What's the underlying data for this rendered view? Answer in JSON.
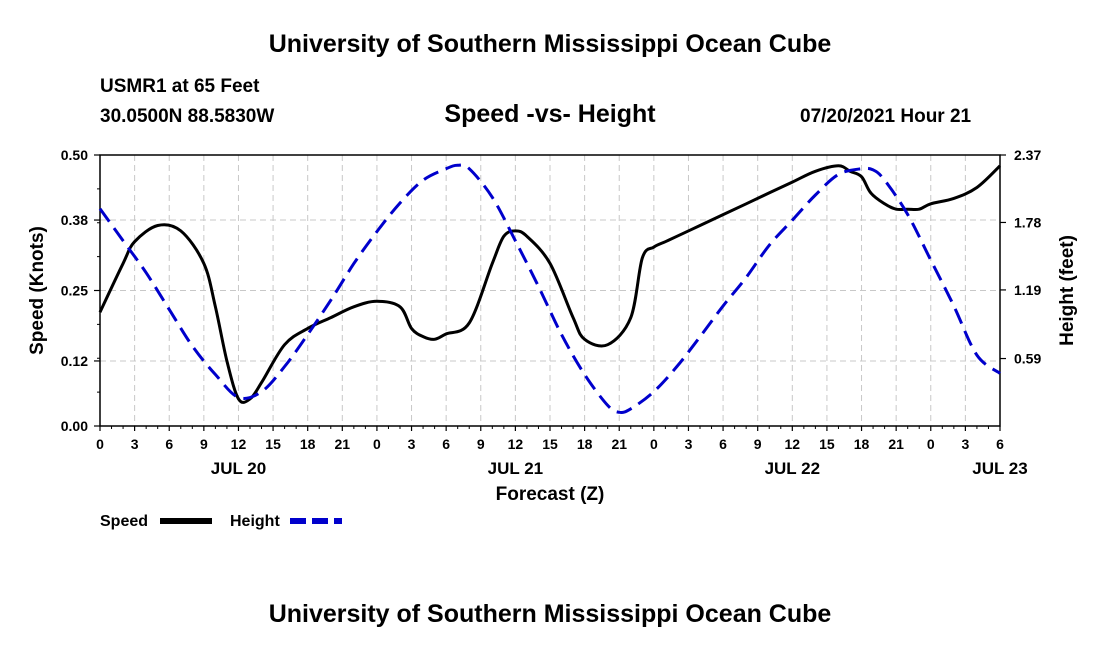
{
  "header": {
    "title": "University of Southern Mississippi Ocean Cube",
    "station": "USMR1 at 65 Feet",
    "coords": "30.0500N  88.5830W",
    "subtitle": "Speed -vs- Height",
    "datetime": "07/20/2021 Hour 21"
  },
  "footer": {
    "title": "University of Southern Mississippi Ocean Cube"
  },
  "chart_data": {
    "type": "line",
    "xlabel": "Forecast (Z)",
    "ylabel_left": "Speed (Knots)",
    "ylabel_right": "Height (feet)",
    "x_range_hours": [
      0,
      78
    ],
    "ylim_left": [
      0,
      0.5
    ],
    "ylim_right": [
      0,
      2.37
    ],
    "left_ticks": [
      "0.00",
      "0.12",
      "0.25",
      "0.38",
      "0.50"
    ],
    "right_ticks": [
      "0.59",
      "1.19",
      "1.78",
      "2.37"
    ],
    "right_tick_values": [
      0.59,
      1.19,
      1.78,
      2.37
    ],
    "x_tick_labels": [
      "0",
      "3",
      "6",
      "9",
      "12",
      "15",
      "18",
      "21",
      "0",
      "3",
      "6",
      "9",
      "12",
      "15",
      "18",
      "21",
      "0",
      "3",
      "6",
      "9",
      "12",
      "15",
      "18",
      "21",
      "0",
      "3",
      "6"
    ],
    "date_labels": [
      {
        "label": "JUL 20",
        "hour": 12
      },
      {
        "label": "JUL 21",
        "hour": 36
      },
      {
        "label": "JUL 22",
        "hour": 60
      },
      {
        "label": "JUL 23",
        "hour": 78
      }
    ],
    "grid": true,
    "series": [
      {
        "name": "Speed",
        "axis": "left",
        "color": "#000000",
        "dash": "solid",
        "x": [
          0,
          2,
          3,
          5,
          7,
          9,
          10,
          11,
          12,
          13,
          14,
          16,
          18,
          20,
          22,
          24,
          26,
          27,
          28,
          29,
          30,
          32,
          34,
          35,
          36,
          37,
          39,
          41,
          42,
          44,
          46,
          47,
          48,
          49,
          50,
          52,
          54,
          56,
          58,
          60,
          62,
          64,
          65,
          66,
          66.8,
          68,
          69,
          70,
          71,
          72,
          74,
          76,
          78
        ],
        "values": [
          0.21,
          0.3,
          0.34,
          0.37,
          0.36,
          0.3,
          0.22,
          0.12,
          0.05,
          0.05,
          0.08,
          0.15,
          0.18,
          0.2,
          0.22,
          0.23,
          0.22,
          0.18,
          0.165,
          0.16,
          0.17,
          0.19,
          0.3,
          0.35,
          0.36,
          0.35,
          0.3,
          0.2,
          0.16,
          0.15,
          0.2,
          0.31,
          0.33,
          0.34,
          0.35,
          0.37,
          0.39,
          0.41,
          0.43,
          0.45,
          0.47,
          0.48,
          0.47,
          0.46,
          0.43,
          0.41,
          0.4,
          0.4,
          0.4,
          0.41,
          0.42,
          0.44,
          0.48
        ]
      },
      {
        "name": "Height",
        "axis": "right",
        "color": "#0000cc",
        "dash": "dashed",
        "x": [
          0,
          2,
          4,
          6,
          8,
          10,
          12,
          14,
          16,
          18,
          20,
          22,
          24,
          26,
          28,
          30,
          31,
          32,
          34,
          36,
          38,
          40,
          42,
          44,
          45,
          46,
          48,
          50,
          52,
          54,
          56,
          58,
          60,
          62,
          64,
          66,
          67,
          68,
          70,
          72,
          74,
          76,
          78
        ],
        "values": [
          1.9,
          1.62,
          1.34,
          1.02,
          0.7,
          0.45,
          0.25,
          0.3,
          0.52,
          0.8,
          1.1,
          1.42,
          1.7,
          1.95,
          2.15,
          2.25,
          2.28,
          2.25,
          2.0,
          1.62,
          1.22,
          0.8,
          0.45,
          0.18,
          0.12,
          0.15,
          0.3,
          0.52,
          0.78,
          1.05,
          1.3,
          1.58,
          1.8,
          2.02,
          2.2,
          2.25,
          2.24,
          2.15,
          1.85,
          1.45,
          1.05,
          0.62,
          0.46
        ]
      }
    ],
    "legend": [
      {
        "label": "Speed",
        "color": "#000000",
        "dash": "solid"
      },
      {
        "label": "Height",
        "color": "#0000cc",
        "dash": "dashed"
      }
    ]
  }
}
